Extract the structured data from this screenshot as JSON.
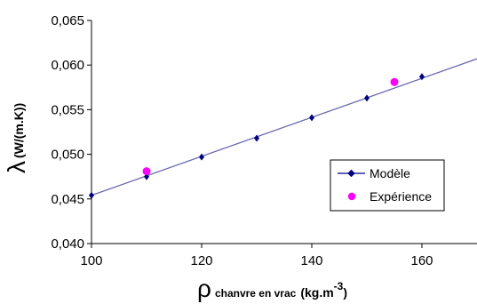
{
  "chart_data": {
    "type": "scatter",
    "title": "",
    "xlim": [
      100,
      170
    ],
    "ylim": [
      0.04,
      0.065
    ],
    "xticks": [
      100,
      120,
      140,
      160
    ],
    "xtick_labels": [
      "100",
      "120",
      "140",
      "160"
    ],
    "yticks": [
      0.04,
      0.045,
      0.05,
      0.055,
      0.06,
      0.065
    ],
    "ytick_labels": [
      "0,040",
      "0,045",
      "0,050",
      "0,055",
      "0,060",
      "0,065"
    ],
    "xlabel": {
      "symbol": "ρ",
      "subscript": "chanvre en vrac",
      "unit_pre": "(kg.m",
      "unit_exp": "-3",
      "unit_post": ")"
    },
    "ylabel": {
      "symbol": "λ",
      "unit": "(W/(m.K))"
    },
    "legend_position": "center-right",
    "grid": false,
    "series": [
      {
        "name": "Modèle",
        "kind": "line-with-markers",
        "color": "#000080",
        "line_color": "#6a6ab0",
        "line_x": [
          100,
          170
        ],
        "line_y": [
          0.0454,
          0.0607
        ],
        "x": [
          100,
          110,
          120,
          130,
          140,
          150,
          160
        ],
        "y": [
          0.0454,
          0.0475,
          0.0497,
          0.0518,
          0.0541,
          0.0563,
          0.0587
        ]
      },
      {
        "name": "Expérience",
        "kind": "points",
        "color": "#ff00ff",
        "x": [
          110,
          155
        ],
        "y": [
          0.0481,
          0.0581
        ]
      }
    ]
  }
}
